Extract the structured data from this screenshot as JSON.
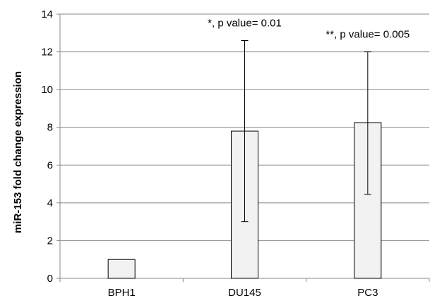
{
  "chart_data": {
    "type": "bar",
    "title": "",
    "xlabel": "",
    "ylabel": "miR-153 fold change expression",
    "categories": [
      "BPH1",
      "DU145",
      "PC3"
    ],
    "values": [
      1.0,
      7.8,
      8.25
    ],
    "error_low": [
      1.0,
      3.0,
      4.45
    ],
    "error_high": [
      1.0,
      12.6,
      12.0
    ],
    "ylim": [
      0,
      14
    ],
    "yticks": [
      0,
      2,
      4,
      6,
      8,
      10,
      12,
      14
    ],
    "grid": true,
    "legend": "none",
    "annotations": [
      {
        "category": "DU145",
        "text": "*, p value= 0.01"
      },
      {
        "category": "PC3",
        "text": "**, p value= 0.005"
      }
    ],
    "colors": {
      "bar_fill": "#f2f2f2",
      "bar_stroke": "#000000",
      "grid": "#888888",
      "axis": "#888888"
    }
  }
}
